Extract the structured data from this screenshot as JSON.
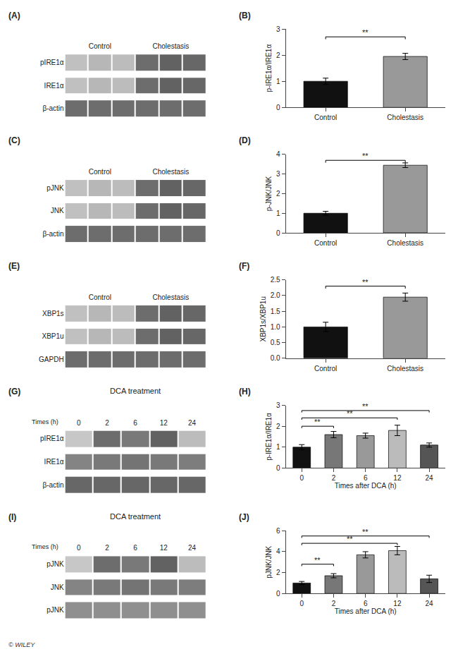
{
  "chart_data": [
    {
      "type": "heatmap",
      "title": "(A)",
      "categories": [
        null,
        "Control",
        null,
        null,
        "Cholestasis",
        null
      ],
      "series": [
        {
          "name": "pIRE1α",
          "values": [
            0.28,
            0.32,
            0.3,
            0.65,
            0.7,
            0.68
          ]
        },
        {
          "name": "IRE1α",
          "values": [
            0.28,
            0.32,
            0.3,
            0.65,
            0.7,
            0.68
          ]
        },
        {
          "name": "β-actin",
          "values": [
            0.65,
            0.65,
            0.65,
            0.65,
            0.65,
            0.65
          ]
        }
      ],
      "zlim": [
        0,
        1
      ]
    },
    {
      "type": "bar",
      "title": "(B)",
      "categories": [
        "Control",
        "Cholestasis"
      ],
      "values": [
        1.0,
        1.95
      ],
      "errors": [
        0.12,
        0.12
      ],
      "colors": [
        "#111111",
        "#999999"
      ],
      "ylabel": "p-IRE1α/IRE1α",
      "ylim": [
        0,
        3
      ],
      "yticks": [
        0,
        1,
        2,
        3
      ],
      "grid": false,
      "annotations": [
        {
          "x1": 0,
          "x2": 1,
          "y": 2.7,
          "label": "**"
        }
      ]
    },
    {
      "type": "heatmap",
      "title": "(C)",
      "categories": [
        null,
        "Control",
        null,
        null,
        "Cholestasis",
        null
      ],
      "series": [
        {
          "name": "pJNK",
          "values": [
            0.28,
            0.32,
            0.3,
            0.65,
            0.7,
            0.68
          ]
        },
        {
          "name": "JNK",
          "values": [
            0.28,
            0.32,
            0.3,
            0.65,
            0.7,
            0.68
          ]
        },
        {
          "name": "β-actin",
          "values": [
            0.65,
            0.65,
            0.65,
            0.65,
            0.65,
            0.65
          ]
        }
      ],
      "zlim": [
        0,
        1
      ]
    },
    {
      "type": "bar",
      "title": "(D)",
      "categories": [
        "Control",
        "Cholestasis"
      ],
      "values": [
        1.0,
        3.45
      ],
      "errors": [
        0.1,
        0.12
      ],
      "colors": [
        "#111111",
        "#999999"
      ],
      "ylabel": "p-JNK/JNK",
      "ylim": [
        0,
        4
      ],
      "yticks": [
        0,
        1,
        2,
        3,
        4
      ],
      "grid": false,
      "annotations": [
        {
          "x1": 0,
          "x2": 1,
          "y": 3.7,
          "label": "**"
        }
      ]
    },
    {
      "type": "heatmap",
      "title": "(E)",
      "categories": [
        null,
        "Control",
        null,
        null,
        "Cholestasis",
        null
      ],
      "series": [
        {
          "name": "XBP1s",
          "values": [
            0.28,
            0.32,
            0.3,
            0.65,
            0.7,
            0.68
          ]
        },
        {
          "name": "XBP1u",
          "values": [
            0.28,
            0.32,
            0.3,
            0.65,
            0.7,
            0.68
          ]
        },
        {
          "name": "GAPDH",
          "values": [
            0.65,
            0.65,
            0.65,
            0.65,
            0.65,
            0.65
          ]
        }
      ],
      "zlim": [
        0,
        1
      ]
    },
    {
      "type": "bar",
      "title": "(F)",
      "categories": [
        "Control",
        "Cholestasis"
      ],
      "values": [
        1.0,
        1.95
      ],
      "errors": [
        0.15,
        0.13
      ],
      "colors": [
        "#111111",
        "#999999"
      ],
      "ylabel": "XBP1s/XBP1u",
      "ylim": [
        0,
        2.5
      ],
      "yticks": [
        {
          "value": 0,
          "label": "0.0"
        },
        0.5,
        {
          "value": 1,
          "label": "1.0"
        },
        1.5,
        {
          "value": 2,
          "label": "2.0"
        },
        2.5
      ],
      "grid": false,
      "annotations": [
        {
          "x1": 0,
          "x2": 1,
          "y": 2.3,
          "label": "**"
        }
      ]
    },
    {
      "type": "heatmap",
      "title": "(G)",
      "subtitle": "DCA treatment",
      "xlabel": "Times (h)",
      "categories": [
        "0",
        "2",
        "6",
        "12",
        "24"
      ],
      "series": [
        {
          "name": "pIRE1α",
          "values": [
            0.25,
            0.65,
            0.6,
            0.7,
            0.3
          ]
        },
        {
          "name": "IRE1α",
          "values": [
            0.55,
            0.6,
            0.62,
            0.6,
            0.58
          ]
        },
        {
          "name": "β-actin",
          "values": [
            0.68,
            0.68,
            0.68,
            0.68,
            0.68
          ]
        }
      ],
      "zlim": [
        0,
        1
      ]
    },
    {
      "type": "bar",
      "title": "(H)",
      "categories": [
        "0",
        "2",
        "6",
        "12",
        "24"
      ],
      "values": [
        1.0,
        1.6,
        1.55,
        1.8,
        1.1
      ],
      "errors": [
        0.12,
        0.15,
        0.12,
        0.25,
        0.1
      ],
      "colors": [
        "#111111",
        "#777777",
        "#999999",
        "#bbbbbb",
        "#555555"
      ],
      "ylabel": "p-IRE1α/IRE1α",
      "xlabel": "Times after DCA (h)",
      "ylim": [
        0,
        3
      ],
      "yticks": [
        0,
        1,
        2,
        3
      ],
      "grid": false,
      "annotations": [
        {
          "x1": 0,
          "x2": 1,
          "y": 2.0,
          "label": "**"
        },
        {
          "x1": 0,
          "x2": 3,
          "y": 2.4,
          "label": "**"
        },
        {
          "x1": 0,
          "x2": 4,
          "y": 2.75,
          "label": "**"
        }
      ]
    },
    {
      "type": "heatmap",
      "title": "(I)",
      "subtitle": "DCA treatment",
      "xlabel": "Times (h)",
      "categories": [
        "0",
        "2",
        "6",
        "12",
        "24"
      ],
      "series": [
        {
          "name": "pJNK",
          "values": [
            0.25,
            0.65,
            0.6,
            0.7,
            0.3
          ]
        },
        {
          "name": "JNK",
          "values": [
            0.55,
            0.6,
            0.62,
            0.6,
            0.58
          ]
        },
        {
          "name": "pJNK",
          "values": [
            0.5,
            0.5,
            0.5,
            0.5,
            0.5
          ]
        }
      ],
      "zlim": [
        0,
        1
      ]
    },
    {
      "type": "bar",
      "title": "(J)",
      "categories": [
        "0",
        "2",
        "6",
        "12",
        "24"
      ],
      "values": [
        1.0,
        1.7,
        3.7,
        4.1,
        1.4
      ],
      "errors": [
        0.15,
        0.2,
        0.3,
        0.4,
        0.35
      ],
      "colors": [
        "#111111",
        "#777777",
        "#999999",
        "#bbbbbb",
        "#555555"
      ],
      "ylabel": "pJNK/JNK",
      "xlabel": "Times after DCA (h)",
      "ylim": [
        0,
        6
      ],
      "yticks": [
        0,
        2,
        4,
        6
      ],
      "grid": false,
      "annotations": [
        {
          "x1": 0,
          "x2": 1,
          "y": 2.8,
          "label": "**"
        },
        {
          "x1": 0,
          "x2": 3,
          "y": 4.8,
          "label": "**"
        },
        {
          "x1": 0,
          "x2": 4,
          "y": 5.5,
          "label": "**"
        }
      ]
    }
  ],
  "annotations": [
    "© WILEY"
  ]
}
